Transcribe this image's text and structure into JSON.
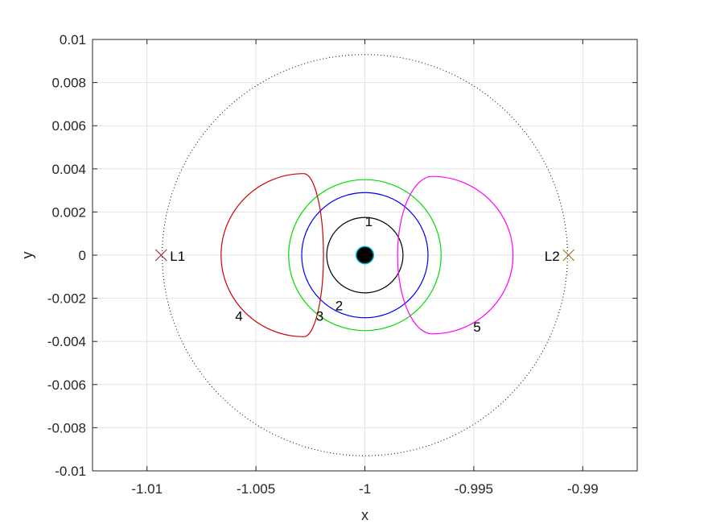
{
  "chart_data": {
    "type": "line",
    "title": "",
    "xlabel": "x",
    "ylabel": "y",
    "xlim": [
      -1.0125,
      -0.9875
    ],
    "ylim": [
      -0.01,
      0.01
    ],
    "grid": true,
    "xticks": [
      -1.01,
      -1.005,
      -1,
      -0.995,
      -0.99
    ],
    "xtick_labels": [
      "-1.01",
      "-1.005",
      "-1",
      "-0.995",
      "-0.99"
    ],
    "yticks": [
      0.01,
      0.008,
      0.006,
      0.004,
      0.002,
      0,
      -0.002,
      -0.004,
      -0.006,
      -0.008,
      -0.01
    ],
    "ytick_labels": [
      "0.01",
      "0.008",
      "0.006",
      "0.004",
      "0.002",
      "0",
      "-0.002",
      "-0.004",
      "-0.006",
      "-0.008",
      "-0.01"
    ],
    "body": {
      "x": -1.0,
      "y": 0.0,
      "radius": 0.0004,
      "fill": "#000000",
      "edge": "#00bcd4"
    },
    "hill_sphere": {
      "cx": -1.0,
      "cy": 0.0,
      "radius": 0.0093,
      "color": "#000000",
      "style": "dotted"
    },
    "orbits": [
      {
        "label": "1",
        "color": "#000000",
        "shape": "circle",
        "cx": -1.0,
        "cy": 0.0,
        "r": 0.00175
      },
      {
        "label": "2",
        "color": "#0000ff",
        "shape": "circle",
        "cx": -1.0,
        "cy": 0.0,
        "r": 0.0029
      },
      {
        "label": "3",
        "color": "#00dd00",
        "shape": "circle",
        "cx": -1.0,
        "cy": 0.0,
        "r": 0.0035
      },
      {
        "label": "4",
        "color": "#d00000",
        "shape": "loop",
        "near_x": -1.0019,
        "far_x": -1.0066,
        "center_x": -1.0028,
        "half_height": 0.00378
      },
      {
        "label": "5",
        "color": "#ff00ff",
        "shape": "loop",
        "near_x": -0.9985,
        "far_x": -0.9932,
        "center_x": -0.9969,
        "half_height": 0.00365
      }
    ],
    "orbit_labels": [
      {
        "text": "1",
        "x": -0.99982,
        "y": 0.00135
      },
      {
        "text": "2",
        "x": -1.00118,
        "y": -0.00255
      },
      {
        "text": "3",
        "x": -1.00207,
        "y": -0.00305
      },
      {
        "text": "4",
        "x": -1.00578,
        "y": -0.00305
      },
      {
        "text": "5",
        "x": -0.99485,
        "y": -0.00355
      }
    ],
    "lagrange_points": [
      {
        "label": "L1",
        "x": -1.00935,
        "y": 0.0,
        "color": "#a0303a",
        "label_side": "right"
      },
      {
        "label": "L2",
        "x": -0.99065,
        "y": 0.0,
        "color": "#a07828",
        "label_side": "left"
      }
    ]
  }
}
